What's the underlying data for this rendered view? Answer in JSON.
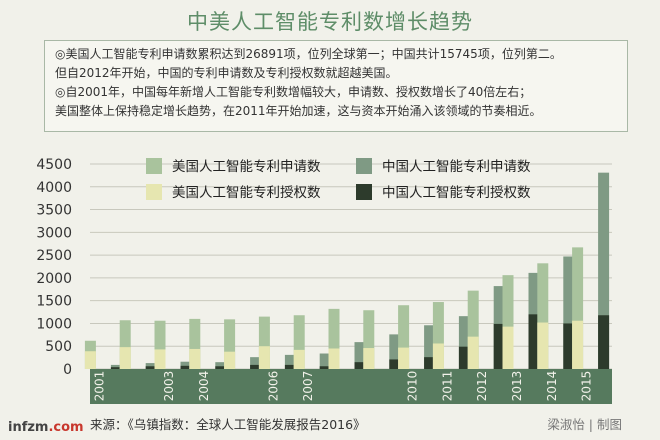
{
  "title": "中美人工智能专利数增长趋势",
  "notes": [
    "◎美国人工智能专利申请数累积达到26891项，位列全球第一；中国共计15745项，位列第二。",
    "但自2012年开始，中国的专利申请数及专利授权数就超越美国。",
    "◎自2001年，中国每年新增人工智能专利数增幅较大，申请数、授权数增长了40倍左右；",
    "美国整体上保持稳定增长趋势，在2011年开始加速，这与资本开始涌入该领域的节奏相近。"
  ],
  "footer": {
    "source": "来源：《乌镇指数：全球人工智能发展报告2016》",
    "credit": "梁淑怡 | 制图",
    "watermark_main": "infzm",
    "watermark_suffix": ".com"
  },
  "colors": {
    "us_apply": "#a9c39d",
    "cn_apply": "#7f9a84",
    "us_grant": "#e6e6b0",
    "cn_grant": "#2d3b2c",
    "axis_band": "#567a5e",
    "grid": "#c8c8bd"
  },
  "chart_data": {
    "type": "bar",
    "categories": [
      "2001",
      "2002",
      "2003",
      "2004",
      "2005",
      "2006",
      "2007",
      "2008",
      "2009",
      "2010",
      "2011",
      "2012",
      "2013",
      "2014",
      "2015"
    ],
    "tick_labels": [
      "2001",
      "",
      "2003",
      "2004",
      "",
      "2006",
      "2007",
      "",
      "",
      "2010",
      "2011",
      "2012",
      "2013",
      "2014",
      "2015"
    ],
    "ylim": [
      0,
      4500
    ],
    "yticks": [
      0,
      500,
      1000,
      1500,
      2000,
      2500,
      3000,
      3500,
      4000,
      4500
    ],
    "legend": [
      {
        "key": "us_apply",
        "name": "美国人工智能专利申请数"
      },
      {
        "key": "cn_apply",
        "name": "中国人工智能专利申请数"
      },
      {
        "key": "us_grant",
        "name": "美国人工智能专利授权数"
      },
      {
        "key": "cn_grant",
        "name": "中国人工智能专利授权数"
      }
    ],
    "series": [
      {
        "key": "us_apply",
        "values": [
          620,
          1070,
          1060,
          1100,
          1090,
          1150,
          1180,
          1320,
          1290,
          1400,
          1470,
          1720,
          2060,
          2320,
          2670
        ]
      },
      {
        "key": "us_grant",
        "values": [
          390,
          480,
          430,
          440,
          380,
          500,
          420,
          450,
          460,
          470,
          560,
          710,
          930,
          1020,
          1060
        ]
      },
      {
        "key": "cn_apply",
        "values": [
          90,
          130,
          160,
          150,
          260,
          310,
          340,
          590,
          760,
          960,
          1160,
          1820,
          2110,
          2470,
          4310
        ]
      },
      {
        "key": "cn_grant",
        "values": [
          40,
          60,
          70,
          60,
          90,
          90,
          60,
          150,
          210,
          260,
          490,
          990,
          1200,
          1000,
          1180
        ]
      }
    ]
  }
}
